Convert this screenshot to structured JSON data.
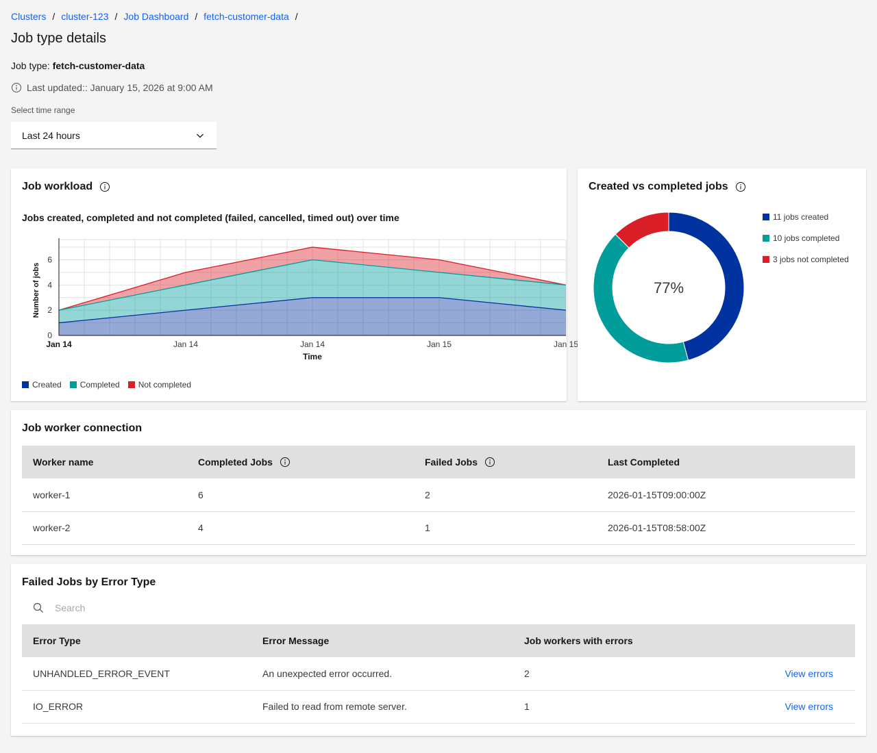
{
  "breadcrumb": [
    "Clusters",
    "cluster-123",
    "Job Dashboard",
    "fetch-customer-data"
  ],
  "page_title": "Job type details",
  "job_type_label": "Job type:",
  "job_type_value": "fetch-customer-data",
  "last_updated": "Last updated:: January 15, 2026 at 9:00 AM",
  "time_range": {
    "label": "Select time range",
    "value": "Last 24 hours"
  },
  "colors": {
    "created": "#0032a0",
    "completed": "#009d9a",
    "not_completed": "#da1e28",
    "link": "#0f62fe"
  },
  "workload": {
    "title": "Job workload",
    "subtitle": "Jobs created, completed and not completed (failed, cancelled, timed out) over time",
    "legend": [
      "Created",
      "Completed",
      "Not completed"
    ]
  },
  "chart_data": [
    {
      "type": "area",
      "stacked": true,
      "title": "Jobs created, completed and not completed (failed, cancelled, timed out) over time",
      "xlabel": "Time",
      "ylabel": "Number of jobs",
      "x_ticks": [
        "Jan 14",
        "Jan 14",
        "Jan 14",
        "Jan 15",
        "Jan 15"
      ],
      "y_ticks": [
        0,
        2,
        4,
        6
      ],
      "ylim": [
        0,
        7.6
      ],
      "grid": true,
      "legend_position": "bottom-left",
      "series": [
        {
          "name": "Created",
          "values": [
            1,
            2,
            3,
            3,
            2
          ]
        },
        {
          "name": "Completed",
          "values": [
            1,
            2,
            3,
            2,
            2
          ]
        },
        {
          "name": "Not completed",
          "values": [
            0,
            1,
            1,
            1,
            0
          ]
        }
      ]
    },
    {
      "type": "pie",
      "donut": true,
      "title": "Created vs completed jobs",
      "center_label": "77%",
      "categories": [
        "11 jobs created",
        "10 jobs completed",
        "3 jobs not completed"
      ],
      "values": [
        11,
        10,
        3
      ],
      "legend_position": "right"
    }
  ],
  "workers": {
    "title": "Job worker connection",
    "columns": [
      "Worker name",
      "Completed Jobs",
      "Failed Jobs",
      "Last Completed"
    ],
    "rows": [
      [
        "worker-1",
        "6",
        "2",
        "2026-01-15T09:00:00Z"
      ],
      [
        "worker-2",
        "4",
        "1",
        "2026-01-15T08:58:00Z"
      ]
    ]
  },
  "errors": {
    "title": "Failed Jobs by Error Type",
    "search_placeholder": "Search",
    "columns": [
      "Error Type",
      "Error Message",
      "Job workers with errors"
    ],
    "rows": [
      [
        "UNHANDLED_ERROR_EVENT",
        "An unexpected error occurred.",
        "2",
        "View errors"
      ],
      [
        "IO_ERROR",
        "Failed to read from remote server.",
        "1",
        "View errors"
      ]
    ]
  }
}
